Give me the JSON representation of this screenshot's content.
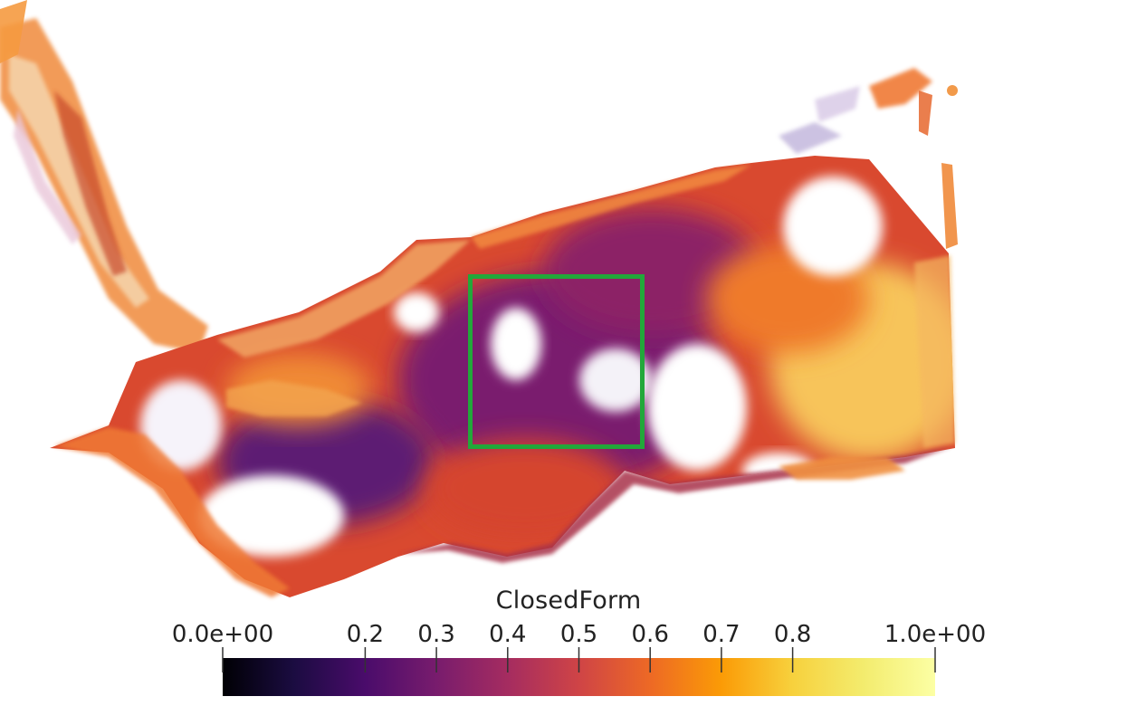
{
  "scene": {
    "roi_box_color": "#22a83a"
  },
  "colorbar": {
    "title": "ClosedForm",
    "colormap": "inferno",
    "range": [
      0.0,
      1.0
    ],
    "ticks": [
      {
        "value": 0.0,
        "label": "0.0e+00"
      },
      {
        "value": 0.2,
        "label": "0.2"
      },
      {
        "value": 0.3,
        "label": "0.3"
      },
      {
        "value": 0.4,
        "label": "0.4"
      },
      {
        "value": 0.5,
        "label": "0.5"
      },
      {
        "value": 0.6,
        "label": "0.6"
      },
      {
        "value": 0.7,
        "label": "0.7"
      },
      {
        "value": 0.8,
        "label": "0.8"
      },
      {
        "value": 1.0,
        "label": "1.0e+00"
      }
    ]
  }
}
